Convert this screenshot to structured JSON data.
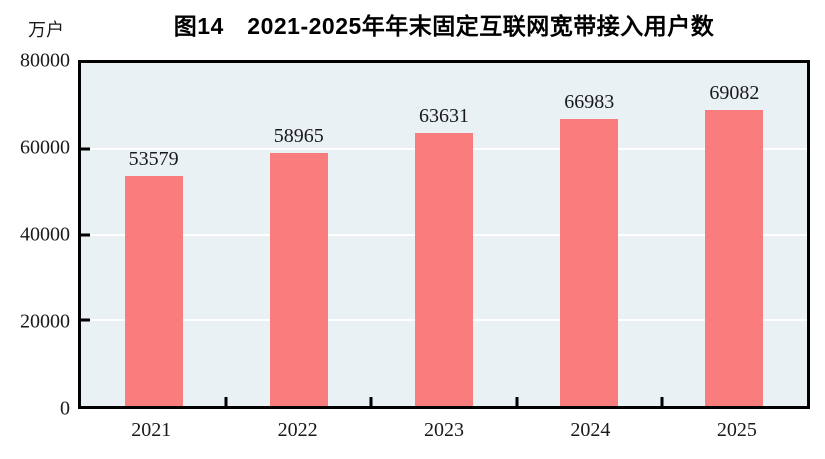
{
  "header": {
    "title": "图14　2021-2025年年末固定互联网宽带接入用户数",
    "unit_label": "万户"
  },
  "chart_data": {
    "type": "bar",
    "title": "图14　2021-2025年年末固定互联网宽带接入用户数",
    "ylabel_unit": "万户",
    "xlabel": "",
    "categories": [
      "2021",
      "2022",
      "2023",
      "2024",
      "2025"
    ],
    "values": [
      53579,
      58965,
      63631,
      66983,
      69082
    ],
    "data_labels": [
      "53579",
      "58965",
      "63631",
      "66983",
      "69082"
    ],
    "ylim": [
      0,
      80000
    ],
    "yticks": [
      0,
      20000,
      40000,
      60000,
      80000
    ],
    "ytick_labels": [
      "0",
      "20000",
      "40000",
      "60000",
      "80000"
    ],
    "grid": "horizontal",
    "legend_position": "none",
    "colors": {
      "bar": "#fa7d7d",
      "plot_background": "#e9f1f4",
      "gridline": "#ffffff",
      "axis_border": "#000000",
      "text": "#1a1a1a"
    }
  }
}
